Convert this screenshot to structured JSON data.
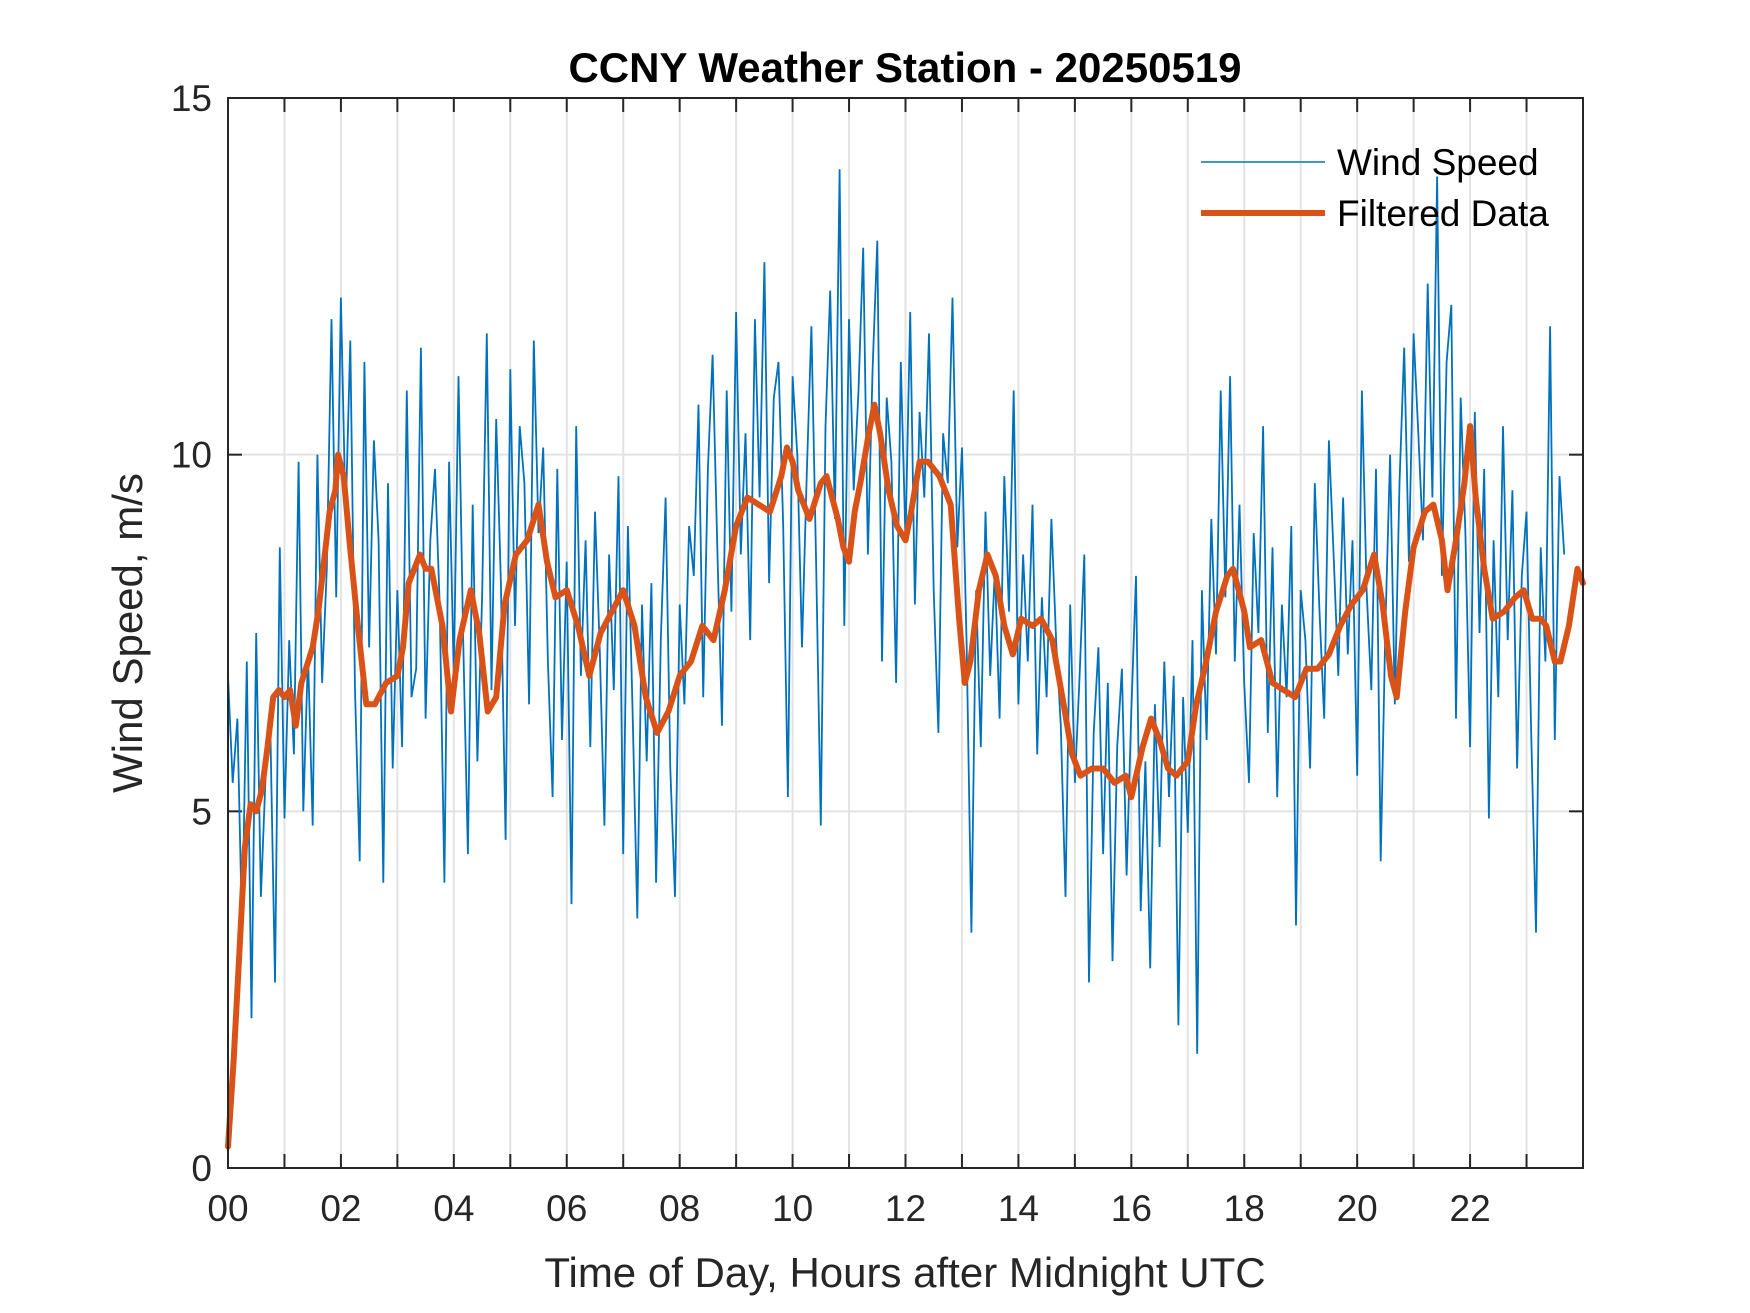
{
  "chart_data": {
    "type": "line",
    "title": "CCNY Weather Station - 20250519",
    "xlabel": "Time of Day, Hours after Midnight UTC",
    "ylabel": "Wind Speed, m/s",
    "xlim": [
      0,
      24
    ],
    "ylim": [
      0,
      15
    ],
    "grid": true,
    "legend_position": "top-right",
    "x_ticks": [
      0,
      2,
      4,
      6,
      8,
      10,
      12,
      14,
      16,
      18,
      20,
      22
    ],
    "x_tick_labels": [
      "00",
      "02",
      "04",
      "06",
      "08",
      "10",
      "12",
      "14",
      "16",
      "18",
      "20",
      "22"
    ],
    "x_minor_grid_step_hours": 1,
    "y_ticks": [
      0,
      5,
      10,
      15
    ],
    "y_tick_labels": [
      "0",
      "5",
      "10",
      "15"
    ],
    "series": [
      {
        "name": "Wind Speed",
        "color": "#0072BD",
        "style": "thin",
        "x_start": 0,
        "x_step": 0.0833333,
        "values": [
          6.9,
          5.4,
          6.3,
          3.3,
          7.1,
          2.1,
          7.5,
          3.8,
          5.5,
          6.2,
          2.6,
          8.7,
          4.9,
          7.4,
          5.8,
          9.9,
          5.0,
          7.2,
          4.8,
          10.0,
          6.8,
          8.4,
          11.9,
          8.0,
          12.2,
          9.1,
          11.6,
          6.7,
          4.3,
          11.3,
          7.3,
          10.2,
          8.8,
          4.0,
          9.6,
          5.6,
          8.1,
          5.9,
          10.9,
          6.6,
          7.0,
          11.5,
          6.3,
          8.8,
          9.8,
          7.9,
          4.0,
          9.9,
          6.9,
          11.1,
          7.4,
          4.4,
          9.3,
          5.7,
          8.0,
          11.7,
          6.7,
          10.5,
          8.2,
          4.6,
          11.2,
          7.6,
          10.4,
          9.6,
          6.5,
          11.6,
          8.9,
          10.1,
          7.1,
          5.2,
          9.8,
          6.0,
          8.5,
          3.7,
          10.4,
          6.9,
          8.8,
          5.9,
          9.2,
          7.3,
          4.8,
          8.6,
          6.7,
          9.7,
          4.4,
          9.0,
          6.4,
          3.5,
          7.9,
          5.7,
          8.2,
          4.0,
          7.4,
          9.4,
          5.6,
          3.8,
          7.9,
          6.5,
          9.0,
          8.3,
          10.7,
          6.6,
          9.8,
          11.4,
          8.7,
          6.2,
          10.9,
          7.8,
          12.0,
          8.6,
          10.3,
          7.4,
          11.9,
          9.4,
          12.7,
          8.2,
          10.8,
          11.3,
          9.0,
          5.2,
          11.1,
          10.0,
          7.3,
          9.7,
          11.8,
          8.5,
          4.8,
          10.4,
          12.3,
          9.1,
          14.0,
          7.6,
          11.9,
          9.5,
          10.9,
          12.9,
          8.6,
          11.2,
          13.0,
          7.1,
          10.8,
          9.9,
          6.8,
          11.3,
          8.8,
          12.0,
          7.9,
          10.6,
          9.4,
          11.7,
          8.1,
          6.1,
          10.3,
          9.6,
          12.2,
          8.7,
          10.1,
          7.3,
          3.3,
          8.1,
          5.9,
          9.2,
          6.9,
          8.4,
          6.3,
          9.7,
          7.8,
          10.9,
          6.5,
          8.6,
          7.1,
          9.3,
          5.8,
          8.0,
          6.6,
          9.1,
          7.4,
          6.2,
          3.8,
          7.9,
          5.4,
          6.9,
          8.6,
          2.6,
          6.1,
          7.3,
          4.4,
          6.8,
          2.9,
          5.9,
          7.0,
          4.1,
          6.4,
          8.3,
          3.6,
          5.7,
          2.8,
          6.5,
          4.5,
          7.1,
          5.2,
          6.9,
          2.0,
          6.6,
          4.7,
          7.4,
          1.6,
          8.1,
          6.0,
          9.1,
          7.2,
          10.9,
          8.0,
          11.1,
          7.1,
          9.3,
          6.8,
          5.4,
          8.9,
          7.5,
          10.4,
          6.1,
          8.7,
          5.2,
          7.9,
          6.6,
          9.0,
          3.4,
          8.1,
          7.4,
          5.6,
          9.6,
          7.8,
          6.3,
          10.2,
          8.6,
          6.9,
          9.4,
          7.2,
          8.8,
          5.5,
          10.9,
          8.1,
          6.7,
          9.8,
          4.3,
          7.6,
          10.0,
          6.5,
          9.6,
          11.5,
          8.5,
          11.7,
          10.3,
          8.8,
          12.4,
          9.4,
          13.9,
          8.3,
          11.3,
          12.1,
          6.3,
          10.8,
          8.9,
          5.9,
          10.6,
          7.5,
          9.8,
          4.9,
          8.8,
          6.6,
          10.4,
          7.4,
          9.5,
          5.6,
          8.3,
          9.2,
          6.1,
          3.3,
          8.7,
          7.1,
          11.8,
          6.0,
          9.7,
          8.6
        ]
      },
      {
        "name": "Filtered Data",
        "color": "#D95319",
        "style": "thick",
        "points": [
          [
            0,
            0.3
          ],
          [
            0.1,
            1.5
          ],
          [
            0.2,
            3.0
          ],
          [
            0.3,
            4.5
          ],
          [
            0.4,
            5.1
          ],
          [
            0.5,
            5.0
          ],
          [
            0.6,
            5.3
          ],
          [
            0.7,
            5.9
          ],
          [
            0.8,
            6.6
          ],
          [
            0.9,
            6.7
          ],
          [
            1.0,
            6.6
          ],
          [
            1.1,
            6.7
          ],
          [
            1.2,
            6.2
          ],
          [
            1.3,
            6.8
          ],
          [
            1.5,
            7.3
          ],
          [
            1.6,
            7.8
          ],
          [
            1.7,
            8.5
          ],
          [
            1.8,
            9.2
          ],
          [
            1.9,
            9.5
          ],
          [
            1.95,
            10.0
          ],
          [
            2.05,
            9.7
          ],
          [
            2.15,
            8.8
          ],
          [
            2.3,
            7.6
          ],
          [
            2.45,
            6.5
          ],
          [
            2.6,
            6.5
          ],
          [
            2.8,
            6.8
          ],
          [
            3.0,
            6.9
          ],
          [
            3.1,
            7.3
          ],
          [
            3.2,
            8.2
          ],
          [
            3.4,
            8.6
          ],
          [
            3.5,
            8.4
          ],
          [
            3.6,
            8.4
          ],
          [
            3.8,
            7.6
          ],
          [
            3.95,
            6.4
          ],
          [
            4.1,
            7.4
          ],
          [
            4.3,
            8.1
          ],
          [
            4.45,
            7.5
          ],
          [
            4.6,
            6.4
          ],
          [
            4.75,
            6.6
          ],
          [
            4.9,
            7.9
          ],
          [
            5.1,
            8.6
          ],
          [
            5.3,
            8.8
          ],
          [
            5.5,
            9.3
          ],
          [
            5.65,
            8.5
          ],
          [
            5.8,
            8.0
          ],
          [
            6.0,
            8.1
          ],
          [
            6.2,
            7.6
          ],
          [
            6.4,
            6.9
          ],
          [
            6.6,
            7.5
          ],
          [
            6.8,
            7.8
          ],
          [
            7.0,
            8.1
          ],
          [
            7.2,
            7.6
          ],
          [
            7.4,
            6.6
          ],
          [
            7.6,
            6.1
          ],
          [
            7.8,
            6.4
          ],
          [
            8.0,
            6.9
          ],
          [
            8.2,
            7.1
          ],
          [
            8.4,
            7.6
          ],
          [
            8.6,
            7.4
          ],
          [
            8.8,
            8.1
          ],
          [
            9.0,
            9.0
          ],
          [
            9.2,
            9.4
          ],
          [
            9.4,
            9.3
          ],
          [
            9.6,
            9.2
          ],
          [
            9.8,
            9.7
          ],
          [
            9.9,
            10.1
          ],
          [
            10.0,
            9.9
          ],
          [
            10.1,
            9.5
          ],
          [
            10.3,
            9.1
          ],
          [
            10.5,
            9.6
          ],
          [
            10.6,
            9.7
          ],
          [
            10.8,
            9.1
          ],
          [
            10.9,
            8.7
          ],
          [
            11.0,
            8.5
          ],
          [
            11.1,
            9.2
          ],
          [
            11.2,
            9.6
          ],
          [
            11.35,
            10.3
          ],
          [
            11.45,
            10.7
          ],
          [
            11.55,
            10.3
          ],
          [
            11.7,
            9.5
          ],
          [
            11.85,
            9.0
          ],
          [
            12.0,
            8.8
          ],
          [
            12.1,
            9.2
          ],
          [
            12.25,
            9.9
          ],
          [
            12.4,
            9.9
          ],
          [
            12.6,
            9.7
          ],
          [
            12.8,
            9.3
          ],
          [
            12.95,
            7.7
          ],
          [
            13.05,
            6.8
          ],
          [
            13.15,
            7.1
          ],
          [
            13.3,
            8.1
          ],
          [
            13.45,
            8.6
          ],
          [
            13.6,
            8.3
          ],
          [
            13.75,
            7.6
          ],
          [
            13.9,
            7.2
          ],
          [
            14.05,
            7.7
          ],
          [
            14.25,
            7.6
          ],
          [
            14.4,
            7.7
          ],
          [
            14.6,
            7.4
          ],
          [
            14.8,
            6.5
          ],
          [
            14.95,
            5.8
          ],
          [
            15.1,
            5.5
          ],
          [
            15.3,
            5.6
          ],
          [
            15.5,
            5.6
          ],
          [
            15.7,
            5.4
          ],
          [
            15.9,
            5.5
          ],
          [
            16.0,
            5.2
          ],
          [
            16.2,
            5.9
          ],
          [
            16.35,
            6.3
          ],
          [
            16.5,
            6.0
          ],
          [
            16.65,
            5.6
          ],
          [
            16.8,
            5.5
          ],
          [
            17.0,
            5.7
          ],
          [
            17.15,
            6.5
          ],
          [
            17.3,
            7.0
          ],
          [
            17.5,
            7.8
          ],
          [
            17.7,
            8.3
          ],
          [
            17.8,
            8.4
          ],
          [
            18.0,
            7.8
          ],
          [
            18.1,
            7.3
          ],
          [
            18.3,
            7.4
          ],
          [
            18.5,
            6.8
          ],
          [
            18.7,
            6.7
          ],
          [
            18.9,
            6.6
          ],
          [
            19.1,
            7.0
          ],
          [
            19.3,
            7.0
          ],
          [
            19.5,
            7.2
          ],
          [
            19.7,
            7.6
          ],
          [
            19.9,
            7.9
          ],
          [
            20.1,
            8.1
          ],
          [
            20.3,
            8.6
          ],
          [
            20.45,
            7.9
          ],
          [
            20.6,
            6.9
          ],
          [
            20.7,
            6.6
          ],
          [
            20.85,
            7.8
          ],
          [
            21.0,
            8.7
          ],
          [
            21.2,
            9.2
          ],
          [
            21.35,
            9.3
          ],
          [
            21.5,
            8.8
          ],
          [
            21.6,
            8.1
          ],
          [
            21.75,
            8.8
          ],
          [
            21.9,
            9.6
          ],
          [
            22.0,
            10.4
          ],
          [
            22.1,
            9.4
          ],
          [
            22.25,
            8.4
          ],
          [
            22.4,
            7.7
          ],
          [
            22.6,
            7.8
          ],
          [
            22.8,
            8.0
          ],
          [
            22.95,
            8.1
          ],
          [
            23.1,
            7.7
          ],
          [
            23.25,
            7.7
          ],
          [
            23.35,
            7.6
          ],
          [
            23.5,
            7.1
          ],
          [
            23.6,
            7.1
          ],
          [
            23.75,
            7.6
          ],
          [
            23.9,
            8.4
          ],
          [
            24.0,
            8.2
          ]
        ]
      }
    ]
  }
}
